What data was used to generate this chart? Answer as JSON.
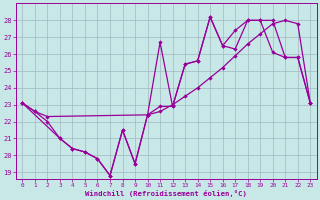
{
  "xlabel": "Windchill (Refroidissement éolien,°C)",
  "bg_color": "#c8e8e8",
  "grid_color": "#a0b8c0",
  "line_color": "#990099",
  "ylim": [
    18.6,
    29.0
  ],
  "xlim": [
    -0.5,
    23.5
  ],
  "yticks": [
    19,
    20,
    21,
    22,
    23,
    24,
    25,
    26,
    27,
    28
  ],
  "xticks": [
    0,
    1,
    2,
    3,
    4,
    5,
    6,
    7,
    8,
    9,
    10,
    11,
    12,
    13,
    14,
    15,
    16,
    17,
    18,
    19,
    20,
    21,
    22,
    23
  ],
  "line1_x": [
    0,
    1,
    2,
    10,
    11,
    12,
    13,
    14,
    15,
    16,
    17,
    18,
    19,
    20,
    21,
    22,
    23
  ],
  "line1_y": [
    23.1,
    22.6,
    22.3,
    22.4,
    22.6,
    23.0,
    23.5,
    24.0,
    24.6,
    25.2,
    25.9,
    26.6,
    27.2,
    27.8,
    28.0,
    27.8,
    23.1
  ],
  "line2_x": [
    0,
    1,
    2,
    3,
    4,
    5,
    6,
    7,
    8,
    9,
    10,
    11,
    12,
    13,
    14,
    15,
    16,
    17,
    18,
    19,
    20,
    21,
    22,
    23
  ],
  "line2_y": [
    23.1,
    22.6,
    22.0,
    21.0,
    20.4,
    20.2,
    19.8,
    18.8,
    21.5,
    19.5,
    22.4,
    26.7,
    22.9,
    25.4,
    25.6,
    28.2,
    26.5,
    26.3,
    28.0,
    28.0,
    26.1,
    25.8,
    25.8,
    23.1
  ],
  "line3_x": [
    0,
    3,
    4,
    5,
    6,
    7,
    8,
    9,
    10,
    11,
    12,
    13,
    14,
    15,
    16,
    17,
    18,
    19,
    20,
    21,
    22,
    23
  ],
  "line3_y": [
    23.1,
    21.0,
    20.4,
    20.2,
    19.8,
    18.8,
    21.5,
    19.5,
    22.4,
    22.9,
    22.9,
    25.4,
    25.6,
    28.2,
    26.5,
    27.4,
    28.0,
    28.0,
    28.0,
    25.8,
    25.8,
    23.1
  ]
}
